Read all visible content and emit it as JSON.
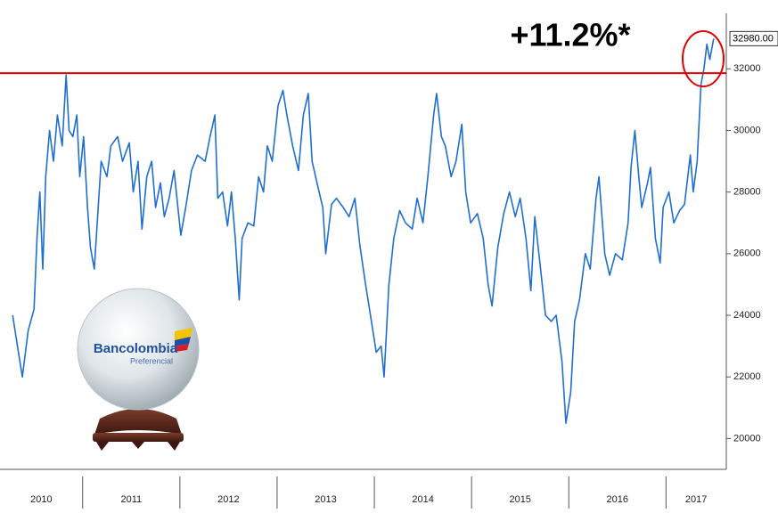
{
  "chart_data": {
    "type": "line",
    "annotation": "+11.2%*",
    "logo": {
      "name": "Bancolombia",
      "subtitle": "Preferencial"
    },
    "x": [
      2010.28,
      2010.33,
      2010.38,
      2010.44,
      2010.5,
      2010.53,
      2010.56,
      2010.59,
      2010.62,
      2010.66,
      2010.7,
      2010.74,
      2010.79,
      2010.83,
      2010.86,
      2010.9,
      2010.94,
      2010.97,
      2011.01,
      2011.05,
      2011.08,
      2011.12,
      2011.16,
      2011.19,
      2011.25,
      2011.29,
      2011.36,
      2011.41,
      2011.48,
      2011.52,
      2011.57,
      2011.61,
      2011.66,
      2011.71,
      2011.75,
      2011.8,
      2011.84,
      2011.89,
      2011.94,
      2012.01,
      2012.06,
      2012.12,
      2012.18,
      2012.26,
      2012.31,
      2012.36,
      2012.39,
      2012.44,
      2012.49,
      2012.53,
      2012.57,
      2012.61,
      2012.64,
      2012.7,
      2012.76,
      2012.81,
      2012.86,
      2012.9,
      2012.95,
      2013.01,
      2013.06,
      2013.1,
      2013.16,
      2013.22,
      2013.27,
      2013.32,
      2013.36,
      2013.41,
      2013.47,
      2013.5,
      2013.56,
      2013.61,
      2013.68,
      2013.74,
      2013.8,
      2013.85,
      2013.91,
      2013.96,
      2014.02,
      2014.07,
      2014.1,
      2014.15,
      2014.2,
      2014.26,
      2014.32,
      2014.39,
      2014.44,
      2014.5,
      2014.55,
      2014.61,
      2014.64,
      2014.69,
      2014.73,
      2014.79,
      2014.84,
      2014.9,
      2014.94,
      2014.99,
      2015.06,
      2015.12,
      2015.17,
      2015.21,
      2015.27,
      2015.33,
      2015.39,
      2015.45,
      2015.5,
      2015.56,
      2015.61,
      2015.65,
      2015.71,
      2015.76,
      2015.82,
      2015.87,
      2015.93,
      2015.97,
      2016.02,
      2016.06,
      2016.11,
      2016.17,
      2016.22,
      2016.28,
      2016.31,
      2016.37,
      2016.42,
      2016.48,
      2016.55,
      2016.61,
      2016.64,
      2016.68,
      2016.72,
      2016.75,
      2016.81,
      2016.84,
      2016.89,
      2016.94,
      2016.97,
      2017.03,
      2017.08,
      2017.14,
      2017.19,
      2017.25,
      2017.28,
      2017.32,
      2017.36,
      2017.39,
      2017.42,
      2017.45,
      2017.49
    ],
    "series": [
      {
        "color": "#1f6fd0",
        "values": [
          24000,
          23000,
          22000,
          23500,
          24200,
          26500,
          28000,
          25500,
          28500,
          30000,
          29000,
          30500,
          29500,
          31800,
          30000,
          29800,
          30500,
          28500,
          29800,
          27500,
          26200,
          25500,
          27500,
          29000,
          28500,
          29500,
          29800,
          29000,
          29600,
          28000,
          29000,
          26800,
          28500,
          29000,
          27500,
          28300,
          27200,
          27800,
          28700,
          26600,
          27500,
          28700,
          29200,
          29000,
          29800,
          30500,
          27800,
          28000,
          26900,
          28000,
          26500,
          24500,
          26500,
          27000,
          26900,
          28500,
          28000,
          29500,
          29000,
          30800,
          31300,
          30500,
          29500,
          28700,
          30500,
          31200,
          29000,
          28300,
          27500,
          26000,
          27600,
          27800,
          27500,
          27200,
          27800,
          26300,
          25000,
          24000,
          22800,
          23000,
          22000,
          25000,
          26500,
          27400,
          27000,
          26800,
          27800,
          27000,
          28500,
          30500,
          31200,
          29800,
          29500,
          28500,
          29000,
          30200,
          28000,
          27000,
          27300,
          26500,
          25000,
          24300,
          26200,
          27300,
          28000,
          27200,
          27800,
          26500,
          24800,
          27200,
          25500,
          24000,
          23800,
          24000,
          22500,
          20500,
          21500,
          23800,
          24500,
          26000,
          25500,
          27800,
          28500,
          26000,
          25300,
          26000,
          25800,
          27000,
          28800,
          30000,
          28500,
          27500,
          28300,
          28800,
          26500,
          25700,
          27500,
          28000,
          27000,
          27400,
          27600,
          29200,
          28000,
          29000,
          31500,
          32000,
          32800,
          32300,
          32980
        ]
      }
    ],
    "last_price": {
      "value": 32980,
      "label": "32980.00"
    },
    "reference_line": {
      "value": 31860,
      "color": "#e00000"
    },
    "xlim": [
      2010.15,
      2017.62
    ],
    "xticks": [
      2011,
      2012,
      2013,
      2014,
      2015,
      2016,
      2017
    ],
    "xtick_labels": [
      "2010",
      "2011",
      "2012",
      "2013",
      "2014",
      "2015",
      "2016",
      "2017"
    ],
    "ylim": [
      19000,
      33800
    ],
    "yticks": [
      20000,
      22000,
      24000,
      26000,
      28000,
      30000,
      32000
    ]
  }
}
